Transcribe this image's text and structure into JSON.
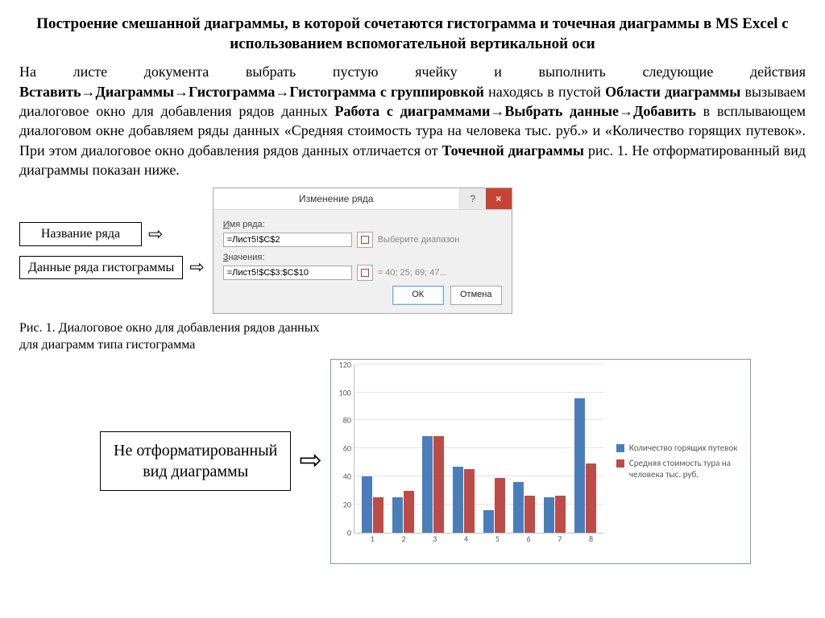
{
  "title": "Построение смешанной диаграммы, в которой сочетаются гистограмма и точечная диаграммы в MS Excel с использованием вспомогательной вертикальной оси",
  "paragraph": {
    "p1": "На листе документа выбрать пустую ячейку и выполнить следующие действия ",
    "p2": "Вставить→Диаграммы→Гистограмма→Гистограмма с группировкой",
    "p3": " находясь в пустой ",
    "p4": "Области диаграммы",
    "p5": " вызываем диалоговое окно для добавления рядов данных ",
    "p6": "Работа с диаграммами→Выбрать данные→Добавить",
    "p7": " в всплывающем диалоговом окне добавляем ряды данных «Средняя стоимость тура на человека тыс. руб.» и «Количество горящих путевок». При этом диалоговое окно добавления рядов данных отличается от ",
    "p8": "Точечной диаграммы",
    "p9": " рис. 1. Не отформатированный вид диаграммы показан ниже."
  },
  "callouts": {
    "row_name": "Название ряда",
    "row_data": "Данные ряда гистограммы",
    "unformatted": "Не отформатированный\nвид диаграммы"
  },
  "dialog": {
    "title": "Изменение ряда",
    "help": "?",
    "close": "×",
    "label_name": "Имя ряда:",
    "field_name": "=Лист5!$C$2",
    "hint_name": "Выберите диапазон",
    "label_values": "Значения:",
    "field_values": "=Лист5!$C$3:$C$10",
    "hint_values": "= 40; 25; 69; 47...",
    "ok": "ОК",
    "cancel": "Отмена"
  },
  "caption": "Рис. 1. Диалоговое окно для добавления рядов данных\nдля диаграмм типа гистограмма",
  "chart": {
    "type": "bar-grouped",
    "ylim": [
      0,
      120
    ],
    "ytick_step": 20,
    "yticks": [
      0,
      20,
      40,
      60,
      80,
      100,
      120
    ],
    "categories": [
      "1",
      "2",
      "3",
      "4",
      "5",
      "6",
      "7",
      "8"
    ],
    "series1_name": "Количество горящих путевок",
    "series2_name": "Средняя стоимость тура на человека тыс. руб.",
    "series1_values": [
      40,
      25,
      69,
      47,
      16,
      36,
      25,
      96
    ],
    "series2_values": [
      25,
      30,
      69,
      45,
      39,
      26,
      26,
      49
    ],
    "series1_color": "#4a7ebb",
    "series2_color": "#bd4b48",
    "grid_color": "#e3e3e3",
    "axis_color": "#bfbfbf",
    "plot_bg": "#ffffff",
    "frame_border": "#7f98b6",
    "label_fontsize": 10,
    "label_color": "#595959"
  }
}
